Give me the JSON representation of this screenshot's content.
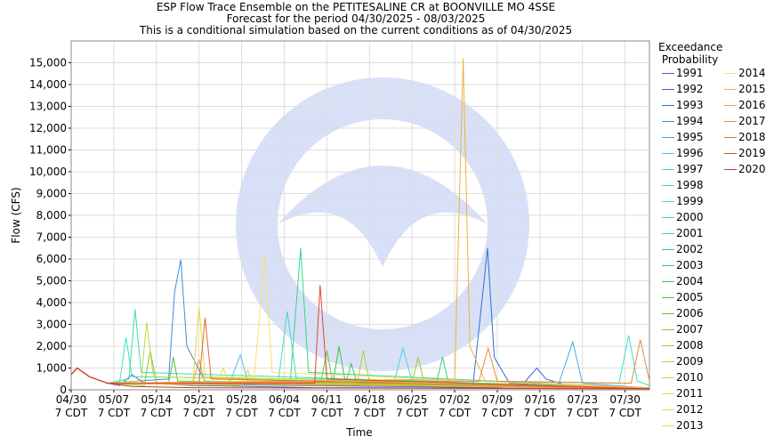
{
  "chart_data": {
    "type": "line",
    "title": "ESP Flow Trace Ensemble on the PETITESALINE CR at BOONVILLE MO 4SSE",
    "subtitle": "Forecast for the period 04/30/2025 - 08/03/2025",
    "note": "This is a conditional simulation based on the current conditions as of 04/30/2025",
    "x_label": "Time",
    "y_label": "Flow (CFS)",
    "legend_title": "Exceedance\n Probability",
    "legend_position": "right",
    "grid": true,
    "xlim": [
      0,
      95
    ],
    "ylim": [
      0,
      16000
    ],
    "xticks": [
      {
        "value": 0,
        "label": "04/30\n7 CDT"
      },
      {
        "value": 7,
        "label": "05/07\n7 CDT"
      },
      {
        "value": 14,
        "label": "05/14\n7 CDT"
      },
      {
        "value": 21,
        "label": "05/21\n7 CDT"
      },
      {
        "value": 28,
        "label": "05/28\n7 CDT"
      },
      {
        "value": 35,
        "label": "06/04\n7 CDT"
      },
      {
        "value": 42,
        "label": "06/11\n7 CDT"
      },
      {
        "value": 49,
        "label": "06/18\n7 CDT"
      },
      {
        "value": 56,
        "label": "06/25\n7 CDT"
      },
      {
        "value": 63,
        "label": "07/02\n7 CDT"
      },
      {
        "value": 70,
        "label": "07/09\n7 CDT"
      },
      {
        "value": 77,
        "label": "07/16\n7 CDT"
      },
      {
        "value": 84,
        "label": "07/23\n7 CDT"
      },
      {
        "value": 91,
        "label": "07/30\n7 CDT"
      }
    ],
    "yticks": [
      0,
      {
        "value": 1000,
        "label": "1,000"
      },
      {
        "value": 2000,
        "label": "2,000"
      },
      {
        "value": 3000,
        "label": "3,000"
      },
      {
        "value": 4000,
        "label": "4,000"
      },
      {
        "value": 5000,
        "label": "5,000"
      },
      {
        "value": 6000,
        "label": "6,000"
      },
      {
        "value": 7000,
        "label": "7,000"
      },
      {
        "value": 8000,
        "label": "8,000"
      },
      {
        "value": 9000,
        "label": "9,000"
      },
      {
        "value": 10000,
        "label": "10,000"
      },
      {
        "value": 11000,
        "label": "11,000"
      },
      {
        "value": 12000,
        "label": "12,000"
      },
      {
        "value": 13000,
        "label": "13,000"
      },
      {
        "value": 14000,
        "label": "14,000"
      },
      {
        "value": 15000,
        "label": "15,000"
      }
    ],
    "series": [
      {
        "name": "1991",
        "color": "#5a50d8",
        "x": [
          0,
          1,
          3,
          6,
          8,
          10,
          12,
          20,
          40,
          60,
          95
        ],
        "values": [
          700,
          1000,
          600,
          300,
          200,
          700,
          300,
          200,
          100,
          80,
          50
        ]
      },
      {
        "name": "1992",
        "color": "#3b5fdc",
        "x": [
          0,
          1,
          3,
          6,
          70,
          74,
          76.5,
          78,
          82,
          95
        ],
        "values": [
          700,
          1000,
          600,
          300,
          100,
          200,
          1000,
          500,
          150,
          80
        ]
      },
      {
        "name": "1993",
        "color": "#2f72d8",
        "x": [
          0,
          1,
          3,
          6,
          66,
          68.4,
          69.5,
          72,
          95
        ],
        "values": [
          700,
          1000,
          600,
          300,
          200,
          6500,
          1500,
          300,
          100
        ]
      },
      {
        "name": "1994",
        "color": "#3a8fe0",
        "x": [
          0,
          1,
          3,
          6,
          16,
          17,
          18,
          19,
          22,
          95
        ],
        "values": [
          700,
          1000,
          600,
          300,
          500,
          4500,
          5970,
          2000,
          400,
          60
        ]
      },
      {
        "name": "1995",
        "color": "#4aa8e8",
        "x": [
          0,
          1,
          3,
          6,
          80,
          82.4,
          84,
          95
        ],
        "values": [
          700,
          1000,
          600,
          300,
          200,
          2200,
          300,
          80
        ]
      },
      {
        "name": "1996",
        "color": "#4fc0e8",
        "x": [
          0,
          1,
          3,
          6,
          26,
          27.8,
          29,
          95
        ],
        "values": [
          700,
          1000,
          600,
          300,
          300,
          1600,
          400,
          60
        ]
      },
      {
        "name": "1997",
        "color": "#4ad0e0",
        "x": [
          0,
          1,
          3,
          6,
          53,
          54.5,
          56,
          95
        ],
        "values": [
          700,
          1000,
          600,
          300,
          300,
          1900,
          400,
          60
        ]
      },
      {
        "name": "1998",
        "color": "#40d8d0",
        "x": [
          0,
          1,
          3,
          6,
          34,
          35.5,
          37,
          95
        ],
        "values": [
          700,
          1000,
          600,
          300,
          300,
          3600,
          500,
          60
        ]
      },
      {
        "name": "1999",
        "color": "#3de0c0",
        "x": [
          0,
          1,
          3,
          6,
          8,
          9,
          10,
          90,
          91.6,
          93,
          95
        ],
        "values": [
          700,
          1000,
          600,
          300,
          400,
          2400,
          600,
          300,
          2500,
          400,
          200
        ]
      },
      {
        "name": "2000",
        "color": "#38e0a8",
        "x": [
          0,
          1,
          3,
          6,
          9.5,
          10.5,
          11.5,
          95
        ],
        "values": [
          700,
          1000,
          600,
          300,
          500,
          3700,
          800,
          60
        ]
      },
      {
        "name": "2001",
        "color": "#30d890",
        "x": [
          0,
          1,
          3,
          6,
          36,
          37.7,
          39,
          95
        ],
        "values": [
          700,
          1000,
          600,
          300,
          400,
          6500,
          800,
          60
        ]
      },
      {
        "name": "2002",
        "color": "#30d070",
        "x": [
          0,
          1,
          3,
          6,
          60,
          61,
          62,
          95
        ],
        "values": [
          700,
          1000,
          600,
          300,
          300,
          1500,
          300,
          50
        ]
      },
      {
        "name": "2003",
        "color": "#38c860",
        "x": [
          0,
          1,
          3,
          6,
          45,
          46,
          47,
          95
        ],
        "values": [
          700,
          1000,
          600,
          300,
          200,
          1200,
          300,
          50
        ]
      },
      {
        "name": "2004",
        "color": "#40c048",
        "x": [
          0,
          1,
          3,
          6,
          43,
          44,
          45,
          95
        ],
        "values": [
          700,
          1000,
          600,
          300,
          300,
          2000,
          400,
          50
        ]
      },
      {
        "name": "2005",
        "color": "#50c040",
        "x": [
          0,
          1,
          3,
          6,
          16,
          16.8,
          17.5,
          95
        ],
        "values": [
          700,
          1000,
          600,
          300,
          300,
          1500,
          400,
          50
        ]
      },
      {
        "name": "2006",
        "color": "#60c838",
        "x": [
          0,
          1,
          3,
          6,
          41,
          42,
          43,
          95
        ],
        "values": [
          700,
          1000,
          600,
          300,
          300,
          1800,
          300,
          50
        ]
      },
      {
        "name": "2007",
        "color": "#80c830",
        "x": [
          0,
          1,
          3,
          6,
          12,
          13,
          14,
          95
        ],
        "values": [
          700,
          1000,
          600,
          300,
          200,
          1800,
          300,
          50
        ]
      },
      {
        "name": "2008",
        "color": "#98d030",
        "x": [
          0,
          1,
          3,
          6,
          56,
          57,
          58,
          95
        ],
        "values": [
          700,
          1000,
          600,
          300,
          300,
          1500,
          300,
          50
        ]
      },
      {
        "name": "2009",
        "color": "#b0d030",
        "x": [
          0,
          1,
          3,
          6,
          47,
          48,
          49,
          95
        ],
        "values": [
          700,
          1000,
          600,
          300,
          300,
          1800,
          300,
          50
        ]
      },
      {
        "name": "2010",
        "color": "#c8d838",
        "x": [
          0,
          1,
          3,
          6,
          11.5,
          12.4,
          13.5,
          95
        ],
        "values": [
          700,
          1000,
          600,
          300,
          400,
          3100,
          600,
          50
        ]
      },
      {
        "name": "2011",
        "color": "#dcdc40",
        "x": [
          0,
          1,
          3,
          6,
          28,
          29,
          30,
          95
        ],
        "values": [
          700,
          1000,
          600,
          300,
          200,
          900,
          300,
          50
        ]
      },
      {
        "name": "2012",
        "color": "#e8d840",
        "x": [
          0,
          1,
          3,
          6,
          20,
          21,
          22,
          95
        ],
        "values": [
          700,
          1000,
          600,
          300,
          300,
          3800,
          600,
          50
        ]
      },
      {
        "name": "2013",
        "color": "#f0d848",
        "x": [
          0,
          1,
          3,
          6,
          24,
          25,
          26,
          95
        ],
        "values": [
          700,
          1000,
          600,
          300,
          300,
          1000,
          300,
          50
        ]
      },
      {
        "name": "2014",
        "color": "#f8e070",
        "x": [
          0,
          1,
          3,
          6,
          30,
          31.8,
          33,
          95
        ],
        "values": [
          700,
          1000,
          600,
          300,
          400,
          6100,
          800,
          60
        ]
      },
      {
        "name": "2015",
        "color": "#f0b040",
        "x": [
          0,
          1,
          3,
          6,
          63,
          64.4,
          65.5,
          68,
          95
        ],
        "values": [
          700,
          1000,
          600,
          300,
          500,
          15200,
          2000,
          400,
          100
        ]
      },
      {
        "name": "2016",
        "color": "#f0a040",
        "x": [
          0,
          1,
          3,
          6,
          20,
          21,
          22,
          95
        ],
        "values": [
          700,
          1000,
          600,
          300,
          300,
          1400,
          300,
          50
        ]
      },
      {
        "name": "2017",
        "color": "#f08838",
        "x": [
          0,
          1,
          3,
          6,
          67,
          68.5,
          70,
          92,
          93.5,
          95
        ],
        "values": [
          700,
          1000,
          600,
          300,
          400,
          1900,
          400,
          300,
          2300,
          400
        ]
      },
      {
        "name": "2018",
        "color": "#e86830",
        "x": [
          0,
          1,
          3,
          6,
          21,
          22,
          23,
          95
        ],
        "values": [
          700,
          1000,
          600,
          300,
          300,
          3300,
          500,
          50
        ]
      },
      {
        "name": "2019",
        "color": "#e04830",
        "x": [
          0,
          1,
          3,
          6,
          40,
          40.9,
          42,
          95
        ],
        "values": [
          700,
          1000,
          600,
          300,
          300,
          4800,
          500,
          50
        ]
      },
      {
        "name": "2020",
        "color": "#d83030",
        "x": [
          0,
          1,
          3,
          6,
          10,
          20,
          40,
          95
        ],
        "values": [
          700,
          1000,
          600,
          300,
          150,
          100,
          80,
          50
        ]
      }
    ]
  }
}
